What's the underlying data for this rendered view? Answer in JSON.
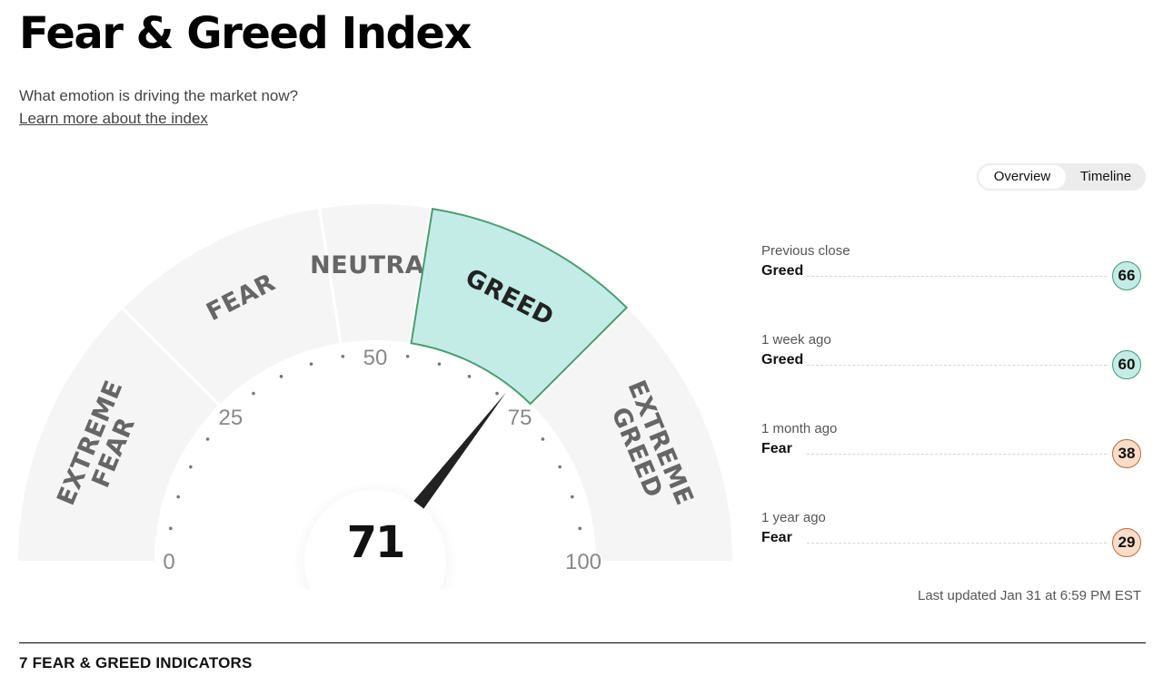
{
  "header": {
    "title": "Fear & Greed Index",
    "subtitle": "What emotion is driving the market now?",
    "learn_more_link": "Learn more about the index"
  },
  "view_toggle": {
    "tabs": [
      {
        "label": "Overview",
        "active": true
      },
      {
        "label": "Timeline",
        "active": false
      }
    ]
  },
  "gauge": {
    "value": 71,
    "current_label": "71",
    "active_segment": "greed",
    "segments": [
      {
        "key": "extreme-fear",
        "lines": [
          "EXTREME",
          "FEAR"
        ],
        "from": 0,
        "to": 25
      },
      {
        "key": "fear",
        "lines": [
          "FEAR"
        ],
        "from": 25,
        "to": 45
      },
      {
        "key": "neutral",
        "lines": [
          "NEUTRAL"
        ],
        "from": 45,
        "to": 55
      },
      {
        "key": "greed",
        "lines": [
          "GREED"
        ],
        "from": 55,
        "to": 75
      },
      {
        "key": "extreme-greed",
        "lines": [
          "EXTREME",
          "GREED"
        ],
        "from": 75,
        "to": 100
      }
    ],
    "scale_labels": [
      "0",
      "25",
      "50",
      "75",
      "100"
    ],
    "colors": {
      "segment_fill": "#f5f5f5",
      "active_fill": "#c4ece6",
      "active_stroke": "#4a9d70",
      "label_color": "#666666",
      "active_label_color": "#222222",
      "needle": "#222222"
    }
  },
  "history": [
    {
      "label": "Previous close",
      "rating": "Greed",
      "value": "66",
      "tone": "greed"
    },
    {
      "label": "1 week ago",
      "rating": "Greed",
      "value": "60",
      "tone": "greed"
    },
    {
      "label": "1 month ago",
      "rating": "Fear",
      "value": "38",
      "tone": "fear"
    },
    {
      "label": "1 year ago",
      "rating": "Fear",
      "value": "29",
      "tone": "fear"
    }
  ],
  "last_updated": "Last updated Jan 31 at 6:59 PM EST",
  "indicators": {
    "heading": "7 FEAR & GREED INDICATORS"
  }
}
